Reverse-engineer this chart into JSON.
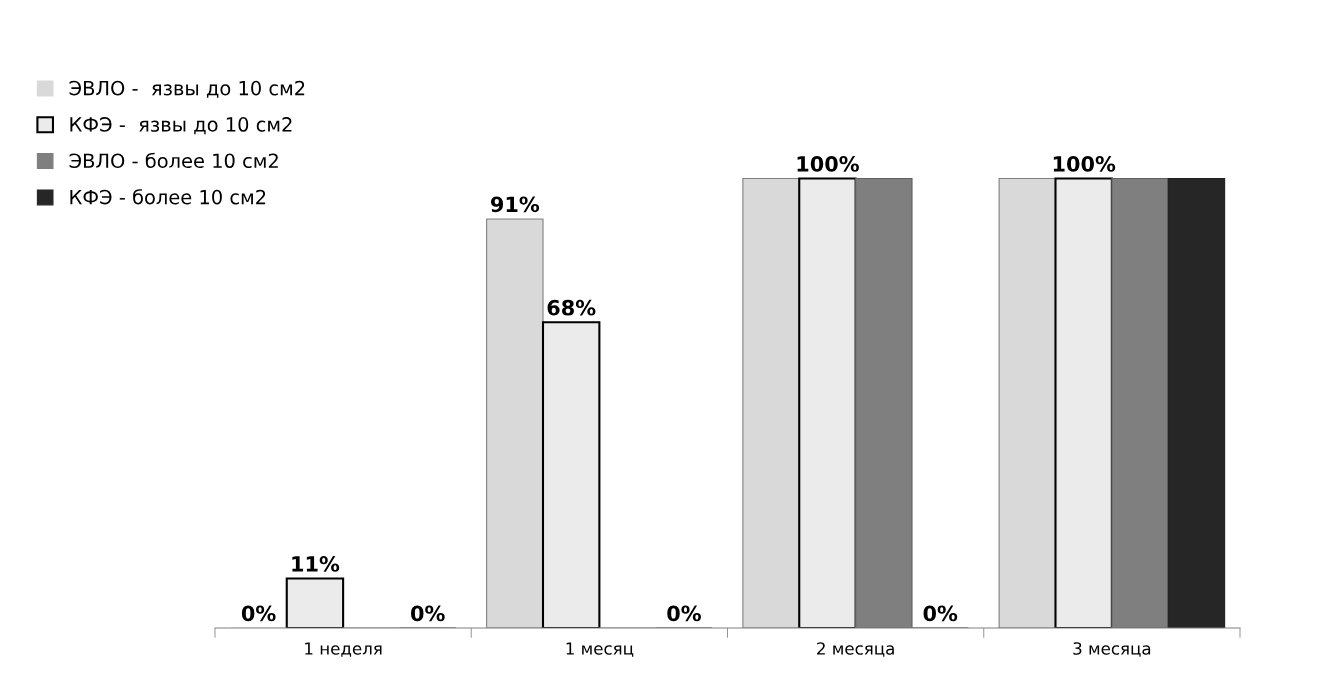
{
  "chart_data": {
    "type": "bar",
    "categories": [
      "1 неделя",
      "1 месяц",
      "2 месяца",
      "3 месяца"
    ],
    "series": [
      {
        "name": "ЭВЛО -  язвы до 10 см2",
        "color": "#d9d9d9",
        "values": [
          0,
          91,
          100,
          100
        ],
        "value_labels": [
          "0%",
          "91%",
          null,
          null
        ]
      },
      {
        "name": "КФЭ -  язвы до 10 см2",
        "color": "#ebebeb",
        "values": [
          11,
          68,
          100,
          100
        ],
        "value_labels": [
          "11%",
          "68%",
          "100%",
          "100%"
        ]
      },
      {
        "name": "ЭВЛО - более 10 см2",
        "color": "#7f7f7f",
        "values": [
          0,
          0,
          100,
          100
        ],
        "value_labels": [
          null,
          null,
          null,
          null
        ]
      },
      {
        "name": "КФЭ - более 10 см2",
        "color": "#262626",
        "values": [
          0,
          0,
          0,
          100
        ],
        "value_labels": [
          "0%",
          "0%",
          "0%",
          null
        ]
      }
    ],
    "legend": "top left",
    "tick_labels": "x",
    "grid": false
  }
}
